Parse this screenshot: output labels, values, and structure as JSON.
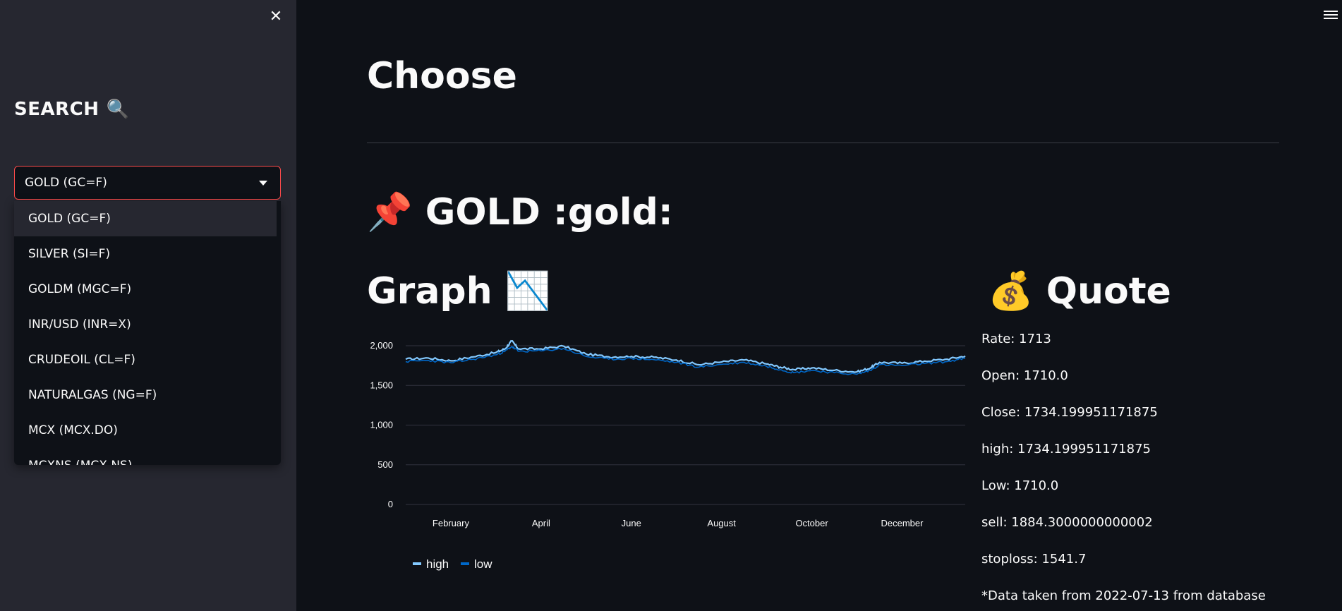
{
  "sidebar": {
    "close_icon": "close-icon",
    "title": "SEARCH",
    "title_icon": "🔍",
    "selected": "GOLD (GC=F)",
    "options": [
      "GOLD (GC=F)",
      "SILVER (SI=F)",
      "GOLDM (MGC=F)",
      "INR/USD (INR=X)",
      "CRUDEOIL (CL=F)",
      "NATURALGAS (NG=F)",
      "MCX (MCX.DO)",
      "MCXNS (MCX.NS)"
    ]
  },
  "main": {
    "heading": "Choose",
    "asset_icon": "📌",
    "asset_heading": "GOLD :gold:",
    "graph_heading": "Graph",
    "graph_icon": "📉",
    "quote_icon": "💰",
    "quote_heading": "Quote",
    "quote": [
      "Rate: 1713",
      "Open: 1710.0",
      "Close: 1734.199951171875",
      "high: 1734.199951171875",
      "Low: 1710.0",
      "sell: 1884.3000000000002",
      "stoploss: 1541.7",
      "*Data taken from 2022-07-13 from database"
    ]
  },
  "colors": {
    "high": "#83c9ff",
    "low": "#0068c9",
    "accent": "#ff4b4b",
    "sidebar_bg": "#262730",
    "main_bg": "#0e1117"
  },
  "chart_data": {
    "type": "line",
    "x_tick_labels": [
      "February",
      "April",
      "June",
      "August",
      "October",
      "December"
    ],
    "ylim": [
      0,
      2000
    ],
    "y_ticks": [
      0,
      500,
      1000,
      1500,
      2000
    ],
    "y_tick_labels": [
      "0",
      "500",
      "1,000",
      "1,500",
      "2,000"
    ],
    "x_months": [
      1.0,
      1.5,
      2.0,
      2.5,
      3.0,
      3.2,
      3.35,
      3.5,
      4.0,
      4.5,
      5.0,
      5.5,
      6.0,
      6.5,
      7.0,
      7.5,
      8.0,
      8.5,
      9.0,
      9.3,
      9.6,
      10.0,
      10.5,
      11.0,
      11.3,
      11.5,
      12.0,
      12.5,
      13.0,
      13.4
    ],
    "series": [
      {
        "name": "high",
        "values": [
          1830,
          1845,
          1810,
          1860,
          1915,
          1960,
          2060,
          1960,
          1960,
          1995,
          1895,
          1860,
          1865,
          1855,
          1820,
          1760,
          1795,
          1820,
          1770,
          1730,
          1700,
          1720,
          1690,
          1670,
          1720,
          1790,
          1780,
          1805,
          1830,
          1870
        ]
      },
      {
        "name": "low",
        "values": [
          1800,
          1815,
          1785,
          1830,
          1885,
          1930,
          1990,
          1930,
          1935,
          1965,
          1865,
          1830,
          1840,
          1825,
          1790,
          1730,
          1765,
          1790,
          1740,
          1700,
          1660,
          1690,
          1660,
          1640,
          1690,
          1760,
          1750,
          1775,
          1800,
          1840
        ]
      }
    ],
    "legend": "bottom-left",
    "grid": true
  }
}
